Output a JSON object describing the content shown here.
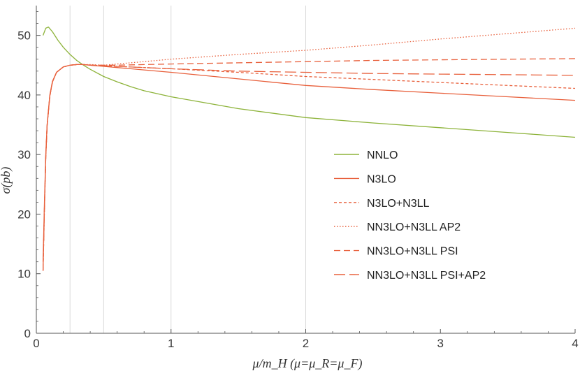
{
  "chart_data": {
    "type": "line",
    "title": "",
    "xlabel": "μ/m_H  (μ=μ_R=μ_F)",
    "ylabel": "σ(pb)",
    "xlim": [
      0,
      4
    ],
    "ylim": [
      0,
      55
    ],
    "xticks": [
      "0",
      "1",
      "2",
      "3",
      "4"
    ],
    "yticks": [
      "0",
      "10",
      "20",
      "30",
      "40",
      "50"
    ],
    "grid": {
      "vertical_lines_at_x": [
        0.25,
        0.5,
        1,
        2
      ]
    },
    "legend_position": "center-right",
    "colors": {
      "nnlo": "#8db33a",
      "n3lo": "#e8603c",
      "axis": "#555555",
      "grid": "#d9d9d9"
    },
    "series": [
      {
        "name": "NNLO",
        "style": "solid",
        "color": "#8db33a",
        "x": [
          0.05,
          0.07,
          0.09,
          0.12,
          0.16,
          0.2,
          0.25,
          0.3,
          0.35,
          0.4,
          0.5,
          0.6,
          0.7,
          0.8,
          1.0,
          1.25,
          1.5,
          2.0,
          2.5,
          3.0,
          3.5,
          4.0
        ],
        "y": [
          50.0,
          51.2,
          51.4,
          50.6,
          49.2,
          48.0,
          46.8,
          45.8,
          45.0,
          44.3,
          43.1,
          42.2,
          41.4,
          40.7,
          39.7,
          38.7,
          37.7,
          36.2,
          35.3,
          34.5,
          33.7,
          32.9
        ]
      },
      {
        "name": "N3LO",
        "style": "solid",
        "color": "#e8603c",
        "x": [
          0.05,
          0.06,
          0.07,
          0.08,
          0.1,
          0.12,
          0.15,
          0.2,
          0.25,
          0.3,
          0.35,
          0.4,
          0.5,
          0.6,
          0.7,
          0.8,
          1.0,
          1.5,
          2.0,
          2.5,
          3.0,
          3.5,
          4.0
        ],
        "y": [
          12.0,
          22.0,
          30.0,
          35.0,
          40.0,
          42.3,
          43.8,
          44.7,
          45.0,
          45.1,
          45.1,
          45.0,
          44.8,
          44.6,
          44.4,
          44.2,
          43.8,
          42.7,
          41.6,
          40.9,
          40.3,
          39.7,
          39.1
        ]
      },
      {
        "name": "N3LO+N3LL",
        "style": "dashed-short",
        "color": "#e8603c",
        "x": [
          0.05,
          0.06,
          0.07,
          0.08,
          0.1,
          0.12,
          0.15,
          0.2,
          0.25,
          0.3,
          0.35,
          0.4,
          0.5,
          0.6,
          0.8,
          1.0,
          1.5,
          2.0,
          2.5,
          3.0,
          3.5,
          4.0
        ],
        "y": [
          10.5,
          21.0,
          29.5,
          34.8,
          39.8,
          42.2,
          43.8,
          44.7,
          45.0,
          45.1,
          45.1,
          45.0,
          44.9,
          44.8,
          44.6,
          44.4,
          43.8,
          43.1,
          42.6,
          42.1,
          41.6,
          41.1
        ]
      },
      {
        "name": "NN3LO+N3LL AP2",
        "style": "dotted",
        "color": "#e8603c",
        "x": [
          0.05,
          0.06,
          0.07,
          0.08,
          0.1,
          0.12,
          0.15,
          0.2,
          0.25,
          0.3,
          0.35,
          0.4,
          0.5,
          0.6,
          0.8,
          1.0,
          1.5,
          2.0,
          2.5,
          3.0,
          3.5,
          4.0
        ],
        "y": [
          10.5,
          21.0,
          29.5,
          34.8,
          39.8,
          42.2,
          43.8,
          44.7,
          45.0,
          45.1,
          45.1,
          45.1,
          45.0,
          45.2,
          45.6,
          46.0,
          46.8,
          47.5,
          48.4,
          49.4,
          50.3,
          51.2
        ]
      },
      {
        "name": "NN3LO+N3LL PSI",
        "style": "dashed-medium",
        "color": "#e8603c",
        "x": [
          0.05,
          0.06,
          0.07,
          0.08,
          0.1,
          0.12,
          0.15,
          0.2,
          0.25,
          0.3,
          0.35,
          0.4,
          0.5,
          0.6,
          0.8,
          1.0,
          1.5,
          2.0,
          2.5,
          3.0,
          3.5,
          4.0
        ],
        "y": [
          10.5,
          21.0,
          29.5,
          34.8,
          39.8,
          42.2,
          43.8,
          44.7,
          45.0,
          45.1,
          45.1,
          45.0,
          45.0,
          45.0,
          45.1,
          45.2,
          45.4,
          45.6,
          45.8,
          45.9,
          46.0,
          46.1
        ]
      },
      {
        "name": "NN3LO+N3LL PSI+AP2",
        "style": "dashed-long",
        "color": "#e8603c",
        "x": [
          0.05,
          0.06,
          0.07,
          0.08,
          0.1,
          0.12,
          0.15,
          0.2,
          0.25,
          0.3,
          0.35,
          0.4,
          0.5,
          0.6,
          0.8,
          1.0,
          1.5,
          2.0,
          2.5,
          3.0,
          3.5,
          4.0
        ],
        "y": [
          10.5,
          21.0,
          29.5,
          34.8,
          39.8,
          42.2,
          43.8,
          44.7,
          45.0,
          45.1,
          45.1,
          45.0,
          44.9,
          44.8,
          44.6,
          44.4,
          44.0,
          43.8,
          43.6,
          43.5,
          43.4,
          43.3
        ]
      }
    ]
  }
}
